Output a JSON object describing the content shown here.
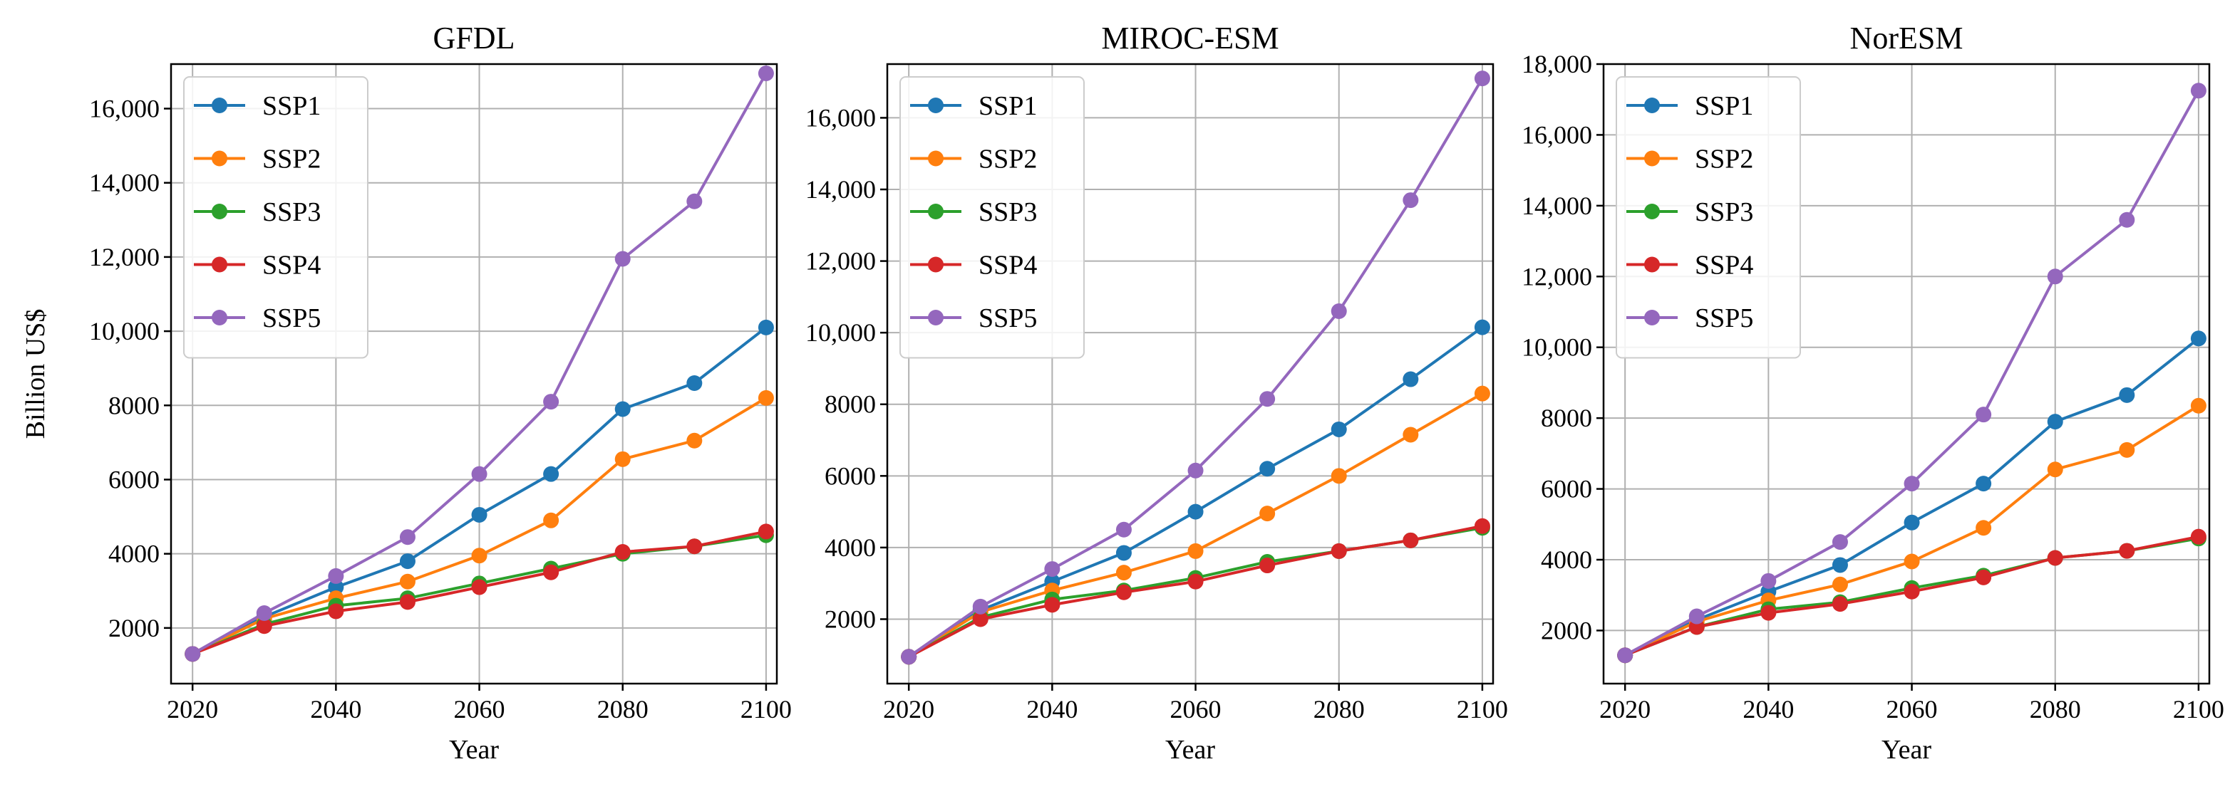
{
  "chart_data": [
    {
      "type": "line",
      "title": "GFDL",
      "xlabel": "Year",
      "ylabel": "Billion US$",
      "x": [
        2020,
        2030,
        2040,
        2050,
        2060,
        2070,
        2080,
        2090,
        2100
      ],
      "xticks": [
        "2020",
        "2040",
        "2060",
        "2080",
        "2100"
      ],
      "yticks": [
        "2000",
        "4000",
        "6000",
        "8000",
        "10,000",
        "12,000",
        "14,000",
        "16,000"
      ],
      "xlim": [
        2017,
        2101.5
      ],
      "ylim": [
        500,
        17200
      ],
      "grid": true,
      "legend": "top-left",
      "series": [
        {
          "name": "SSP1",
          "color": "#1f77b4",
          "values": [
            1300,
            2300,
            3100,
            3800,
            5050,
            6150,
            7900,
            8600,
            10100
          ]
        },
        {
          "name": "SSP2",
          "color": "#ff7f0e",
          "values": [
            1300,
            2250,
            2800,
            3250,
            3950,
            4900,
            6550,
            7050,
            8200
          ]
        },
        {
          "name": "SSP3",
          "color": "#2ca02c",
          "values": [
            1300,
            2100,
            2600,
            2800,
            3200,
            3600,
            4000,
            4200,
            4500
          ]
        },
        {
          "name": "SSP4",
          "color": "#d62728",
          "values": [
            1300,
            2050,
            2450,
            2700,
            3100,
            3500,
            4050,
            4200,
            4600
          ]
        },
        {
          "name": "SSP5",
          "color": "#9467bd",
          "values": [
            1300,
            2400,
            3400,
            4450,
            6150,
            8100,
            11950,
            13500,
            16950
          ]
        }
      ]
    },
    {
      "type": "line",
      "title": "MIROC-ESM",
      "xlabel": "Year",
      "ylabel": "",
      "x": [
        2020,
        2030,
        2040,
        2050,
        2060,
        2070,
        2080,
        2090,
        2100
      ],
      "xticks": [
        "2020",
        "2040",
        "2060",
        "2080",
        "2100"
      ],
      "yticks": [
        "2000",
        "4000",
        "6000",
        "8000",
        "10,000",
        "12,000",
        "14,000",
        "16,000"
      ],
      "xlim": [
        2017,
        2101.5
      ],
      "ylim": [
        200,
        17500
      ],
      "grid": true,
      "legend": "top-left",
      "series": [
        {
          "name": "SSP1",
          "color": "#1f77b4",
          "values": [
            950,
            2250,
            3050,
            3850,
            5000,
            6200,
            7300,
            8700,
            10150
          ]
        },
        {
          "name": "SSP2",
          "color": "#ff7f0e",
          "values": [
            950,
            2200,
            2800,
            3300,
            3900,
            4950,
            6000,
            7150,
            8300
          ]
        },
        {
          "name": "SSP3",
          "color": "#2ca02c",
          "values": [
            950,
            2050,
            2550,
            2800,
            3150,
            3600,
            3900,
            4200,
            4550
          ]
        },
        {
          "name": "SSP4",
          "color": "#d62728",
          "values": [
            950,
            2000,
            2400,
            2750,
            3050,
            3500,
            3900,
            4200,
            4600
          ]
        },
        {
          "name": "SSP5",
          "color": "#9467bd",
          "values": [
            950,
            2350,
            3400,
            4500,
            6150,
            8150,
            10600,
            13700,
            17100
          ]
        }
      ]
    },
    {
      "type": "line",
      "title": "NorESM",
      "xlabel": "Year",
      "ylabel": "",
      "x": [
        2020,
        2030,
        2040,
        2050,
        2060,
        2070,
        2080,
        2090,
        2100
      ],
      "xticks": [
        "2020",
        "2040",
        "2060",
        "2080",
        "2100"
      ],
      "yticks": [
        "2000",
        "4000",
        "6000",
        "8000",
        "10,000",
        "12,000",
        "14,000",
        "16,000",
        "18,000"
      ],
      "xlim": [
        2017,
        2101.5
      ],
      "ylim": [
        500,
        18000
      ],
      "grid": true,
      "legend": "top-left",
      "series": [
        {
          "name": "SSP1",
          "color": "#1f77b4",
          "values": [
            1300,
            2300,
            3100,
            3850,
            5050,
            6150,
            7900,
            8650,
            10250
          ]
        },
        {
          "name": "SSP2",
          "color": "#ff7f0e",
          "values": [
            1300,
            2250,
            2850,
            3300,
            3950,
            4900,
            6550,
            7100,
            8350
          ]
        },
        {
          "name": "SSP3",
          "color": "#2ca02c",
          "values": [
            1300,
            2100,
            2600,
            2800,
            3200,
            3550,
            4050,
            4250,
            4600
          ]
        },
        {
          "name": "SSP4",
          "color": "#d62728",
          "values": [
            1300,
            2100,
            2500,
            2750,
            3100,
            3500,
            4050,
            4250,
            4650
          ]
        },
        {
          "name": "SSP5",
          "color": "#9467bd",
          "values": [
            1300,
            2400,
            3400,
            4500,
            6150,
            8100,
            12000,
            13600,
            17250
          ]
        }
      ]
    }
  ]
}
